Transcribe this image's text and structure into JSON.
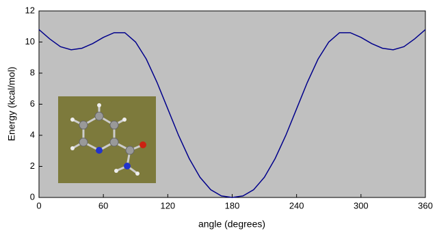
{
  "chart_data": {
    "type": "line",
    "x_label": "angle (degrees)",
    "y_label": "Energy (kcal/mol)",
    "x": [
      0,
      10,
      20,
      30,
      40,
      50,
      60,
      70,
      80,
      90,
      100,
      110,
      120,
      130,
      140,
      150,
      160,
      170,
      180,
      190,
      200,
      210,
      220,
      230,
      240,
      250,
      260,
      270,
      280,
      290,
      300,
      310,
      320,
      330,
      340,
      350,
      360
    ],
    "series": [
      {
        "color": "#00008b",
        "values": [
          10.8,
          10.2,
          9.7,
          9.5,
          9.6,
          9.9,
          10.3,
          10.6,
          10.6,
          10.0,
          8.9,
          7.4,
          5.7,
          4.0,
          2.5,
          1.3,
          0.5,
          0.1,
          0.0,
          0.1,
          0.5,
          1.3,
          2.5,
          4.0,
          5.7,
          7.4,
          8.9,
          10.0,
          10.6,
          10.6,
          10.3,
          9.9,
          9.6,
          9.5,
          9.7,
          10.2,
          10.8
        ]
      }
    ],
    "xlim": [
      0,
      360
    ],
    "xticks": [
      0,
      60,
      120,
      180,
      240,
      300,
      360
    ],
    "ylim": [
      0,
      12
    ],
    "yticks": [
      0,
      2,
      4,
      6,
      8,
      10,
      12
    ],
    "plot_background": "#c0c0c0"
  }
}
